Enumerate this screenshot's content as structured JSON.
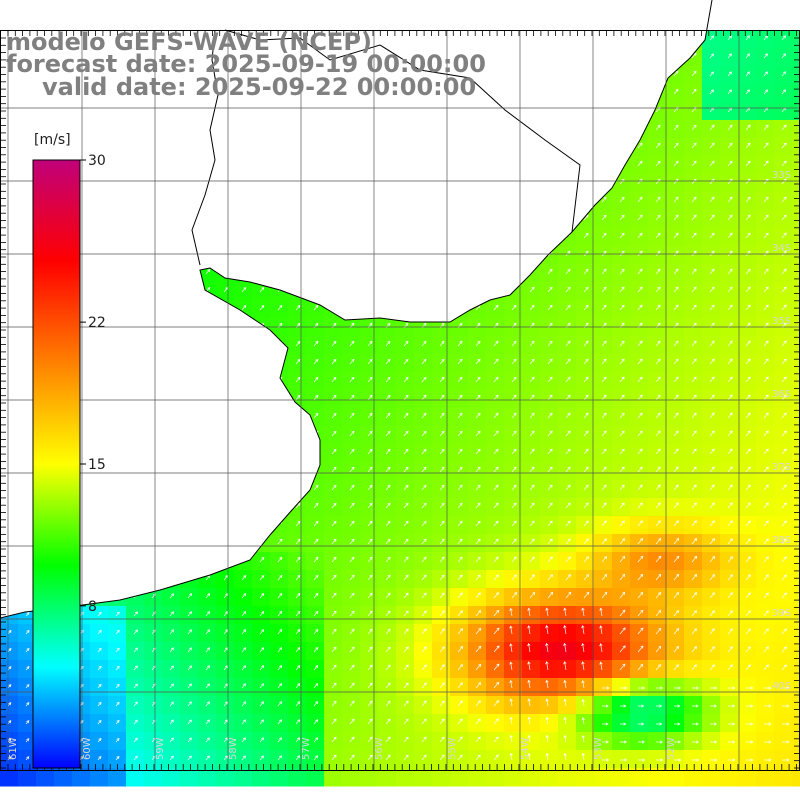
{
  "title": {
    "model": "modelo GEFS-WAVE (NCEP)",
    "forecast": "forecast date: 2025-09-19 00:00:00",
    "valid": "valid date: 2025-09-22 00:00:00"
  },
  "colorbar": {
    "unit": "[m/s]",
    "ticks": [
      "30",
      "22",
      "15",
      "8"
    ],
    "range": [
      0,
      30
    ],
    "colors": [
      "#0000ff",
      "#00ffff",
      "#00ff00",
      "#ffff00",
      "#ff8000",
      "#ff0000",
      "#c0007a"
    ]
  },
  "map": {
    "field": "wind speed",
    "lat_labels": [
      "33S",
      "34S",
      "35S",
      "36S",
      "37S",
      "38S",
      "39S",
      "40S"
    ],
    "lon_labels": [
      "61W",
      "60W",
      "59W",
      "58W",
      "57W",
      "56W",
      "55W",
      "54W",
      "53W",
      "52W"
    ],
    "grid_lines": true,
    "arrows": "white wind vectors"
  }
}
